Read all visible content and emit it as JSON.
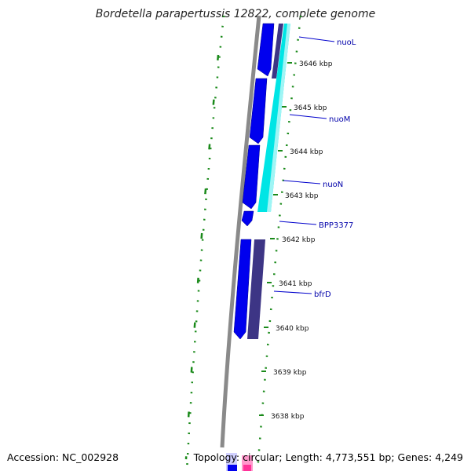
{
  "title": "Bordetella parapertussis 12822, complete genome",
  "footer": {
    "accession": "Accession: NC_002928",
    "summary": "Topology: circular; Length: 4,773,551 bp; Genes: 4,249"
  },
  "colors": {
    "backbone": "#7a7a7a",
    "dots": "#1a8a1a",
    "gene_forward": "#0000ee",
    "gene_reverse_dark": "#3d3585",
    "gene_cyan": "#00e5e5",
    "label_line": "#0000cc",
    "label_text": "#0000aa",
    "tick_text": "#111111"
  },
  "ticks": [
    {
      "label": "3646 kbp"
    },
    {
      "label": "3645 kbp"
    },
    {
      "label": "3644 kbp"
    },
    {
      "label": "3643 kbp"
    },
    {
      "label": "3642 kbp"
    },
    {
      "label": "3641 kbp"
    },
    {
      "label": "3640 kbp"
    },
    {
      "label": "3639 kbp"
    },
    {
      "label": "3638 kbp"
    }
  ],
  "genes": [
    {
      "name": "nuoL"
    },
    {
      "name": "nuoM"
    },
    {
      "name": "nuoN"
    },
    {
      "name": "BPP3377"
    },
    {
      "name": "bfrD"
    }
  ]
}
